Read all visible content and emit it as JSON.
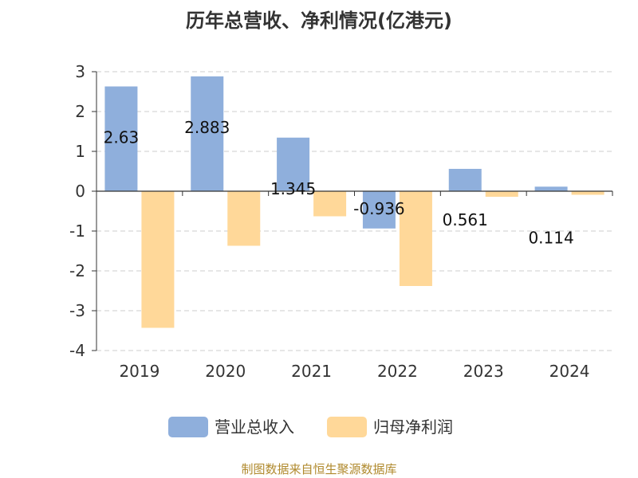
{
  "chart_data": {
    "type": "bar",
    "title": "历年总营收、净利情况(亿港元)",
    "categories": [
      "2019",
      "2020",
      "2021",
      "2022",
      "2023",
      "2024"
    ],
    "series": [
      {
        "name": "营业总收入",
        "color": "#8fafdc",
        "values": [
          2.63,
          2.883,
          1.345,
          -0.936,
          0.561,
          0.114
        ],
        "labels": [
          "2.63",
          "2.883",
          "1.345",
          "-0.936",
          "0.561",
          "0.114"
        ]
      },
      {
        "name": "归母净利润",
        "color": "#ffd899",
        "values": [
          -3.43,
          -1.37,
          -0.63,
          -2.38,
          -0.14,
          -0.09
        ]
      }
    ],
    "ylim": [
      -4,
      3
    ],
    "yticks": [
      3,
      2,
      1,
      0,
      -1,
      -2,
      -3,
      -4
    ],
    "grid": true,
    "legend_position": "bottom"
  },
  "source_note": "制图数据来自恒生聚源数据库"
}
